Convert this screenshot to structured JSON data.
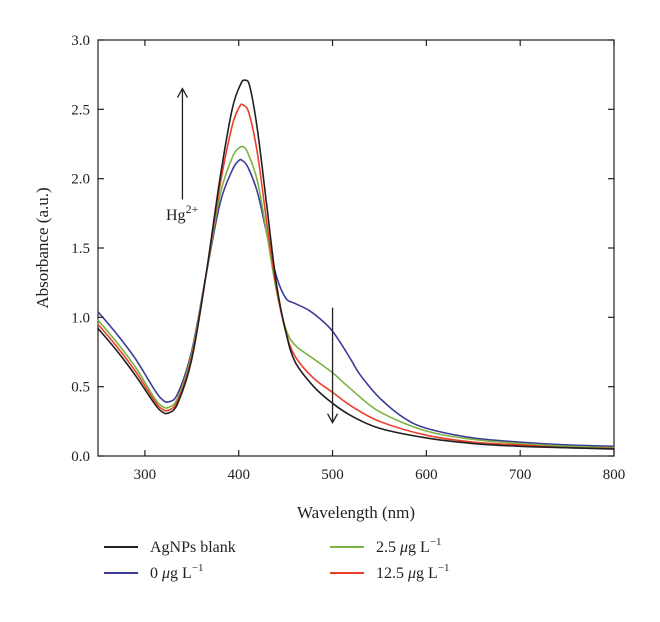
{
  "chart_data": {
    "type": "line",
    "title": "",
    "xlabel": "Wavelength (nm)",
    "ylabel": "Absorbance (a.u.)",
    "xlim": [
      250,
      800
    ],
    "ylim": [
      0,
      3.0
    ],
    "x_ticks": [
      "300",
      "400",
      "500",
      "600",
      "700",
      "800"
    ],
    "y_ticks": [
      "0.0",
      "0.5",
      "1.0",
      "1.5",
      "2.0",
      "2.5",
      "3.0"
    ],
    "grid": false,
    "legend_position": "bottom",
    "annotations": {
      "hg_label": "Hg",
      "hg_superscript": "2+",
      "arrow_up": {
        "x": 340,
        "y_from": 1.85,
        "y_to": 2.65
      },
      "arrow_down": {
        "x": 500,
        "y_from": 1.07,
        "y_to": 0.24
      }
    },
    "series": [
      {
        "name": "AgNPs blank",
        "legend_prefix": "AgNPs blank",
        "legend_unit": "",
        "legend_sup": "",
        "color": "#231f20",
        "x": [
          250,
          270,
          290,
          310,
          318,
          325,
          335,
          350,
          365,
          380,
          393,
          402,
          407,
          412,
          420,
          430,
          440,
          450,
          460,
          480,
          500,
          520,
          550,
          600,
          650,
          700,
          750,
          800
        ],
        "y": [
          0.92,
          0.76,
          0.58,
          0.38,
          0.32,
          0.31,
          0.38,
          0.7,
          1.3,
          2.0,
          2.5,
          2.68,
          2.71,
          2.66,
          2.35,
          1.8,
          1.25,
          0.9,
          0.68,
          0.5,
          0.38,
          0.29,
          0.2,
          0.13,
          0.09,
          0.07,
          0.06,
          0.05
        ]
      },
      {
        "name": "0 μg L−1",
        "legend_prefix": "0 ",
        "legend_unit": "μg L",
        "legend_sup": "−1",
        "color": "#3b3d98",
        "x": [
          250,
          270,
          290,
          310,
          318,
          325,
          335,
          350,
          365,
          380,
          393,
          400,
          404,
          410,
          420,
          430,
          440,
          450,
          460,
          475,
          490,
          500,
          510,
          520,
          530,
          550,
          575,
          600,
          650,
          700,
          750,
          800
        ],
        "y": [
          1.04,
          0.88,
          0.7,
          0.48,
          0.41,
          0.39,
          0.45,
          0.76,
          1.3,
          1.82,
          2.06,
          2.13,
          2.13,
          2.08,
          1.9,
          1.6,
          1.3,
          1.14,
          1.1,
          1.05,
          0.97,
          0.9,
          0.8,
          0.69,
          0.58,
          0.42,
          0.28,
          0.2,
          0.13,
          0.1,
          0.08,
          0.07
        ]
      },
      {
        "name": "2.5 μg L−1",
        "legend_prefix": "2.5 ",
        "legend_unit": "μg L",
        "legend_sup": "−1",
        "color": "#7cb342",
        "x": [
          250,
          270,
          290,
          310,
          318,
          325,
          335,
          350,
          365,
          380,
          393,
          400,
          405,
          410,
          420,
          430,
          440,
          450,
          460,
          480,
          500,
          520,
          550,
          600,
          650,
          700,
          750,
          800
        ],
        "y": [
          0.98,
          0.82,
          0.64,
          0.42,
          0.36,
          0.35,
          0.42,
          0.74,
          1.3,
          1.88,
          2.15,
          2.22,
          2.23,
          2.18,
          1.98,
          1.6,
          1.2,
          0.92,
          0.8,
          0.7,
          0.6,
          0.48,
          0.32,
          0.18,
          0.12,
          0.09,
          0.07,
          0.06
        ]
      },
      {
        "name": "12.5 μg L−1",
        "legend_prefix": "12.5 ",
        "legend_unit": "μg L",
        "legend_sup": "−1",
        "color": "#e8402a",
        "x": [
          250,
          270,
          290,
          310,
          318,
          325,
          335,
          350,
          365,
          380,
          393,
          401,
          405,
          411,
          420,
          430,
          440,
          450,
          460,
          480,
          500,
          520,
          550,
          600,
          650,
          700,
          750,
          800
        ],
        "y": [
          0.95,
          0.79,
          0.61,
          0.4,
          0.34,
          0.33,
          0.4,
          0.72,
          1.3,
          1.95,
          2.38,
          2.52,
          2.53,
          2.47,
          2.18,
          1.68,
          1.22,
          0.9,
          0.72,
          0.56,
          0.46,
          0.36,
          0.25,
          0.15,
          0.1,
          0.08,
          0.06,
          0.055
        ]
      }
    ]
  }
}
